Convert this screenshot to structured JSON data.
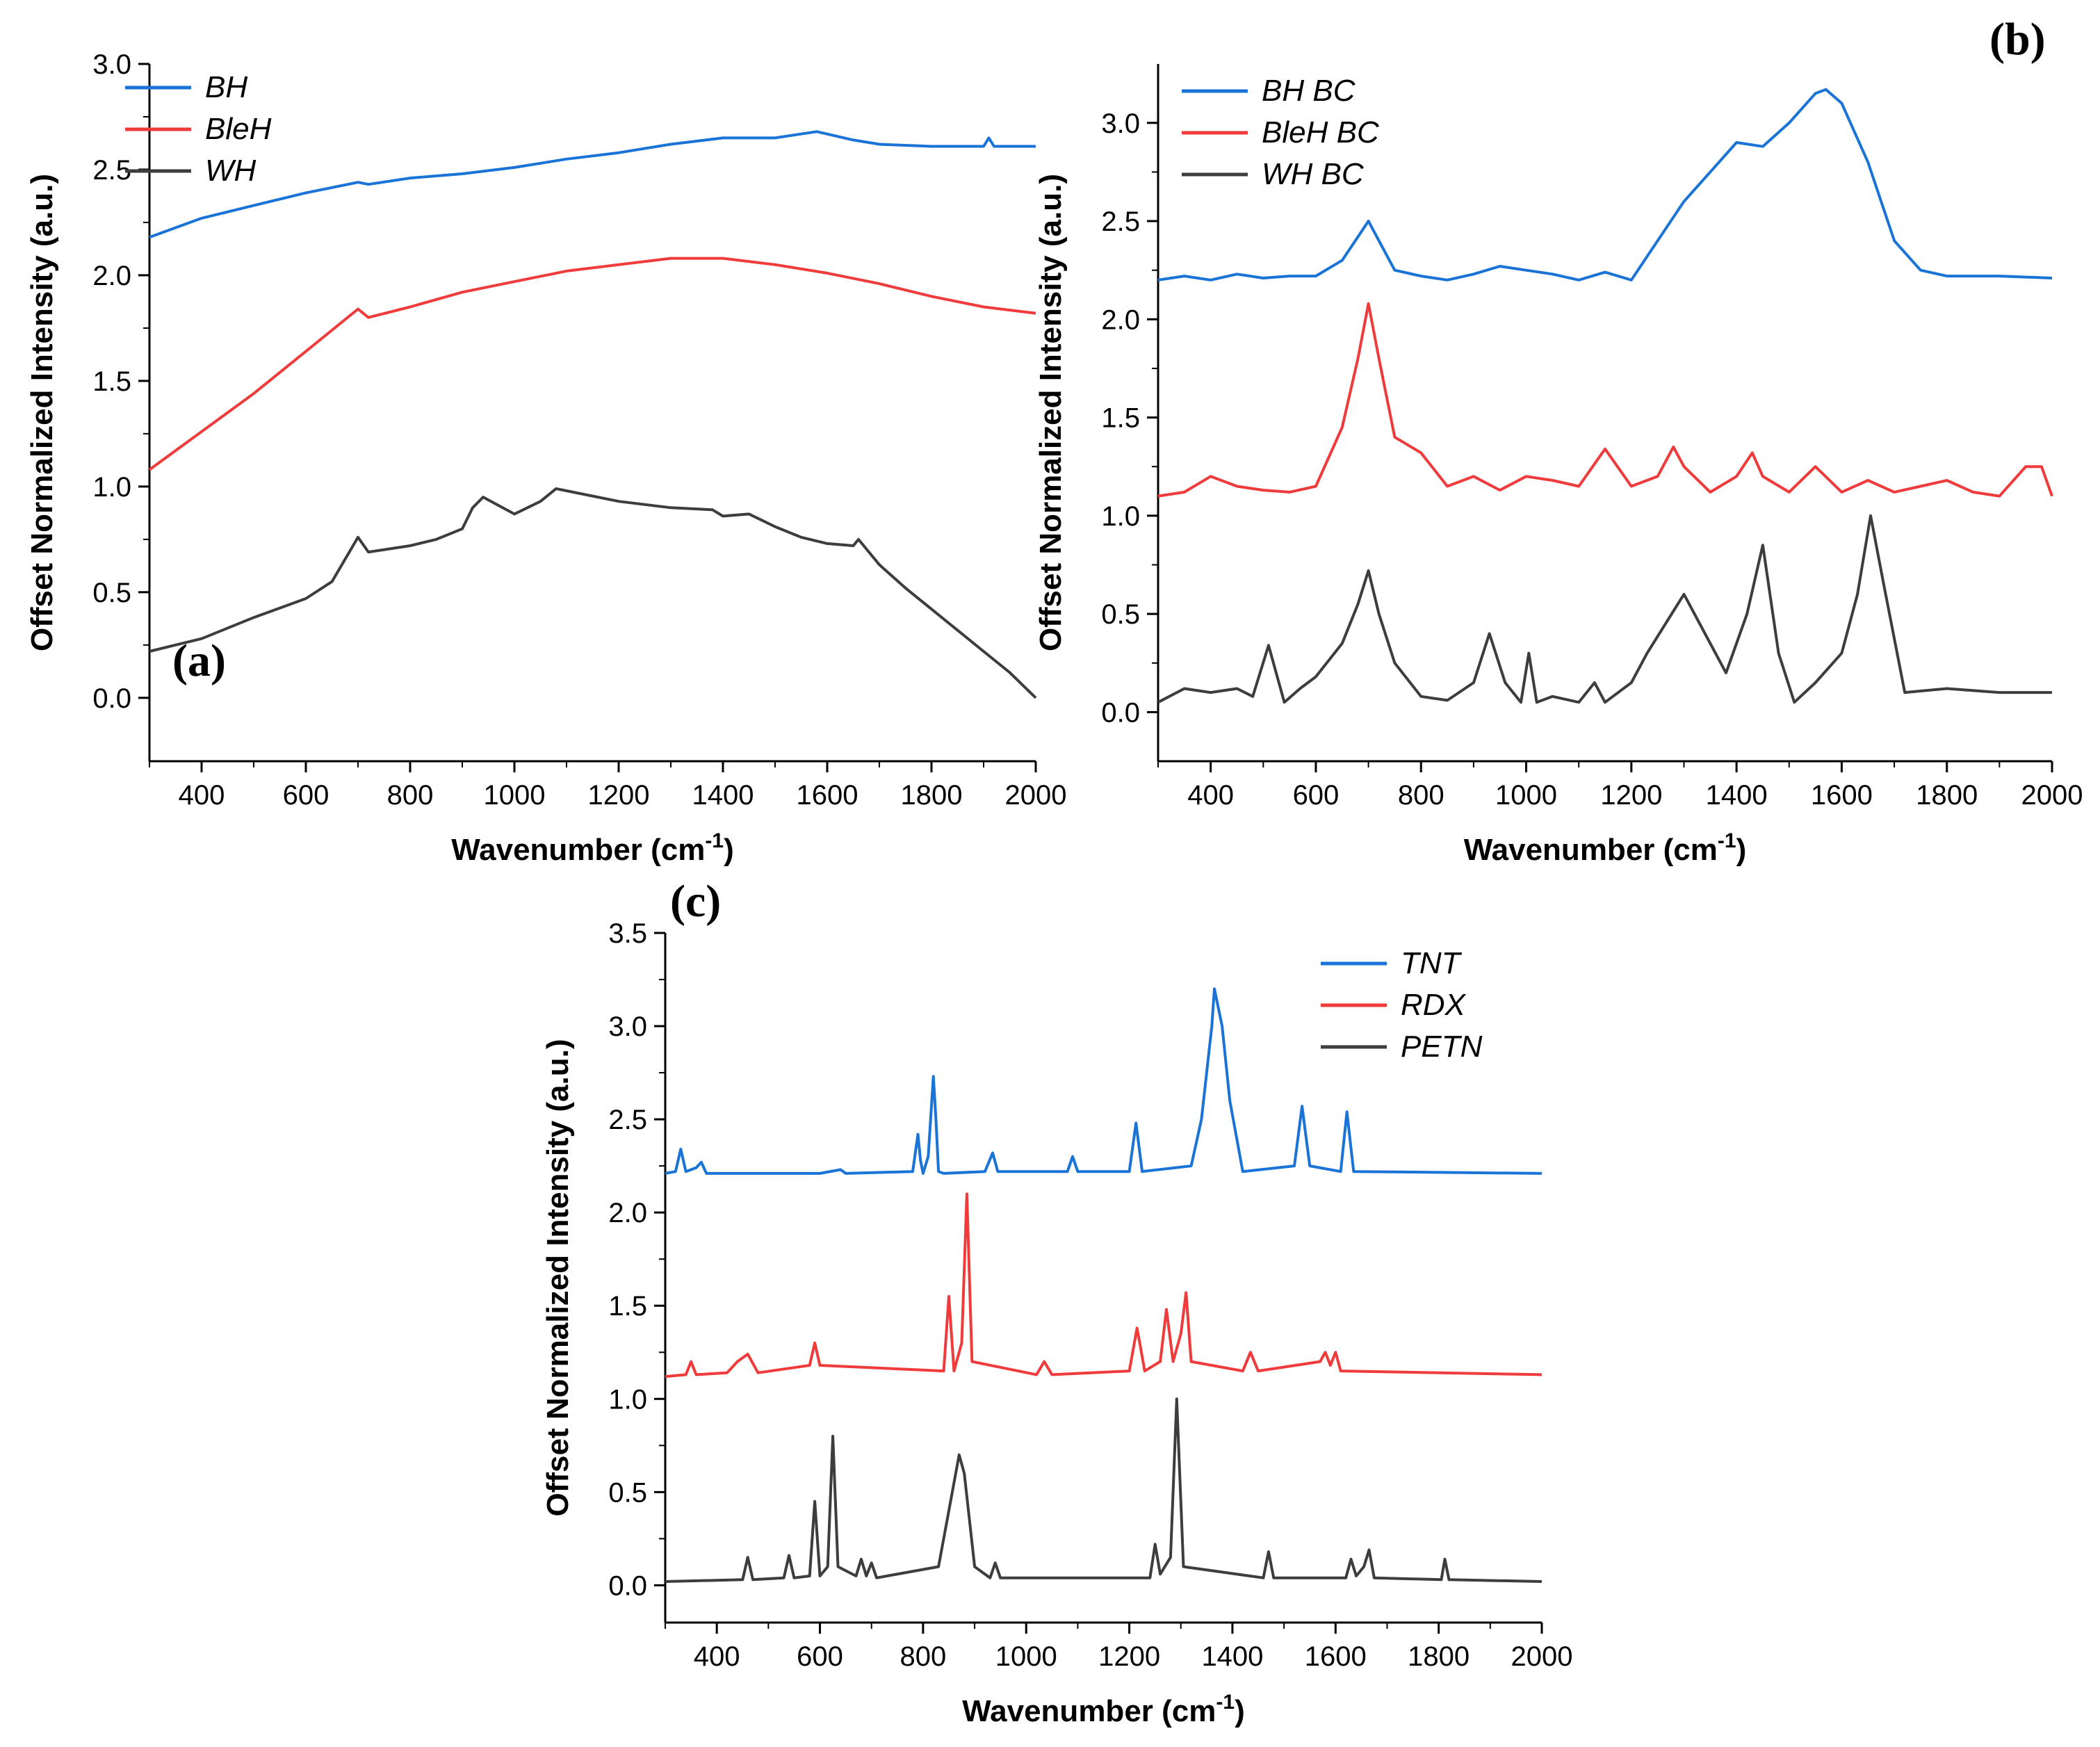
{
  "colors": {
    "blue": "#1a73d6",
    "red": "#ef3b3b",
    "gray": "#3d3d3d"
  },
  "chart_data": [
    {
      "panel_label": "(a)",
      "type": "line",
      "xlabel_main": "Wavenumber (cm",
      "xlabel_sup": "-1",
      "xlabel_tail": ")",
      "ylabel": "Offset Normalized Intensity (a.u.)",
      "xlim": [
        300,
        2000
      ],
      "ylim": [
        -0.3,
        3.0
      ],
      "xticks": [
        400,
        600,
        800,
        1000,
        1200,
        1400,
        1600,
        1800,
        2000
      ],
      "xtick_labels": [
        "400",
        "600",
        "800",
        "1000",
        "1200",
        "1400",
        "1600",
        "1800",
        "2000"
      ],
      "yticks": [
        0.0,
        0.5,
        1.0,
        1.5,
        2.0,
        2.5,
        3.0
      ],
      "ytick_labels": [
        "0.0",
        "0.5",
        "1.0",
        "1.5",
        "2.0",
        "2.5",
        "3.0"
      ],
      "legend_position": "top-left",
      "series": [
        {
          "name": "BH",
          "color": "blue",
          "x": [
            300,
            400,
            500,
            600,
            700,
            720,
            800,
            900,
            1000,
            1100,
            1200,
            1300,
            1400,
            1500,
            1580,
            1650,
            1700,
            1800,
            1900,
            1910,
            1920,
            2000
          ],
          "y": [
            2.18,
            2.27,
            2.33,
            2.39,
            2.44,
            2.43,
            2.46,
            2.48,
            2.51,
            2.55,
            2.58,
            2.62,
            2.65,
            2.65,
            2.68,
            2.64,
            2.62,
            2.61,
            2.61,
            2.65,
            2.61,
            2.61
          ]
        },
        {
          "name": "BleH",
          "color": "red",
          "x": [
            300,
            350,
            400,
            500,
            600,
            650,
            700,
            720,
            800,
            900,
            1000,
            1100,
            1200,
            1300,
            1400,
            1500,
            1600,
            1700,
            1800,
            1900,
            2000
          ],
          "y": [
            1.08,
            1.17,
            1.26,
            1.44,
            1.64,
            1.74,
            1.84,
            1.8,
            1.85,
            1.92,
            1.97,
            2.02,
            2.05,
            2.08,
            2.08,
            2.05,
            2.01,
            1.96,
            1.9,
            1.85,
            1.82
          ]
        },
        {
          "name": "WH",
          "color": "gray",
          "x": [
            300,
            400,
            500,
            600,
            650,
            700,
            720,
            800,
            850,
            900,
            920,
            940,
            1000,
            1050,
            1080,
            1100,
            1200,
            1300,
            1380,
            1400,
            1450,
            1500,
            1550,
            1600,
            1650,
            1660,
            1700,
            1750,
            1800,
            1850,
            1900,
            1950,
            2000
          ],
          "y": [
            0.22,
            0.28,
            0.38,
            0.47,
            0.55,
            0.76,
            0.69,
            0.72,
            0.75,
            0.8,
            0.9,
            0.95,
            0.87,
            0.93,
            0.99,
            0.98,
            0.93,
            0.9,
            0.89,
            0.86,
            0.87,
            0.81,
            0.76,
            0.73,
            0.72,
            0.75,
            0.63,
            0.52,
            0.42,
            0.32,
            0.22,
            0.12,
            0.0
          ]
        }
      ]
    },
    {
      "panel_label": "(b)",
      "type": "line",
      "xlabel_main": "Wavenumber (cm",
      "xlabel_sup": "-1",
      "xlabel_tail": ")",
      "ylabel": "Offset Normalized Intensity (a.u.)",
      "xlim": [
        300,
        2000
      ],
      "ylim": [
        -0.25,
        3.3
      ],
      "xticks": [
        400,
        600,
        800,
        1000,
        1200,
        1400,
        1600,
        1800,
        2000
      ],
      "xtick_labels": [
        "400",
        "600",
        "800",
        "1000",
        "1200",
        "1400",
        "1600",
        "1800",
        "2000"
      ],
      "yticks": [
        0.0,
        0.5,
        1.0,
        1.5,
        2.0,
        2.5,
        3.0
      ],
      "ytick_labels": [
        "0.0",
        "0.5",
        "1.0",
        "1.5",
        "2.0",
        "2.5",
        "3.0"
      ],
      "legend_position": "top-left",
      "series": [
        {
          "name": "BH BC",
          "color": "blue",
          "x": [
            300,
            350,
            400,
            450,
            500,
            550,
            600,
            650,
            680,
            700,
            720,
            750,
            800,
            850,
            900,
            950,
            1000,
            1050,
            1100,
            1150,
            1200,
            1250,
            1300,
            1350,
            1400,
            1450,
            1500,
            1550,
            1570,
            1600,
            1650,
            1700,
            1750,
            1800,
            1900,
            2000
          ],
          "y": [
            2.2,
            2.22,
            2.2,
            2.23,
            2.21,
            2.22,
            2.22,
            2.3,
            2.42,
            2.5,
            2.4,
            2.25,
            2.22,
            2.2,
            2.23,
            2.27,
            2.25,
            2.23,
            2.2,
            2.24,
            2.2,
            2.4,
            2.6,
            2.75,
            2.9,
            2.88,
            3.0,
            3.15,
            3.17,
            3.1,
            2.8,
            2.4,
            2.25,
            2.22,
            2.22,
            2.21
          ]
        },
        {
          "name": "BleH BC",
          "color": "red",
          "x": [
            300,
            350,
            400,
            450,
            500,
            550,
            600,
            650,
            680,
            700,
            720,
            750,
            800,
            850,
            900,
            950,
            1000,
            1050,
            1100,
            1150,
            1200,
            1250,
            1280,
            1300,
            1350,
            1400,
            1430,
            1450,
            1500,
            1550,
            1600,
            1650,
            1700,
            1750,
            1800,
            1850,
            1900,
            1950,
            1980,
            2000
          ],
          "y": [
            1.1,
            1.12,
            1.2,
            1.15,
            1.13,
            1.12,
            1.15,
            1.45,
            1.8,
            2.08,
            1.8,
            1.4,
            1.32,
            1.15,
            1.2,
            1.13,
            1.2,
            1.18,
            1.15,
            1.34,
            1.15,
            1.2,
            1.35,
            1.25,
            1.12,
            1.2,
            1.32,
            1.2,
            1.12,
            1.25,
            1.12,
            1.18,
            1.12,
            1.15,
            1.18,
            1.12,
            1.1,
            1.25,
            1.25,
            1.1
          ]
        },
        {
          "name": "WH BC",
          "color": "gray",
          "x": [
            300,
            350,
            400,
            450,
            480,
            510,
            540,
            570,
            600,
            650,
            680,
            700,
            720,
            750,
            800,
            850,
            900,
            930,
            960,
            990,
            1005,
            1020,
            1050,
            1100,
            1130,
            1150,
            1200,
            1230,
            1300,
            1350,
            1380,
            1420,
            1450,
            1480,
            1510,
            1550,
            1600,
            1630,
            1655,
            1680,
            1720,
            1800,
            1900,
            2000
          ],
          "y": [
            0.05,
            0.12,
            0.1,
            0.12,
            0.08,
            0.34,
            0.05,
            0.12,
            0.18,
            0.35,
            0.55,
            0.72,
            0.5,
            0.25,
            0.08,
            0.06,
            0.15,
            0.4,
            0.15,
            0.05,
            0.3,
            0.05,
            0.08,
            0.05,
            0.15,
            0.05,
            0.15,
            0.3,
            0.6,
            0.35,
            0.2,
            0.5,
            0.85,
            0.3,
            0.05,
            0.15,
            0.3,
            0.6,
            1.0,
            0.65,
            0.1,
            0.12,
            0.1,
            0.1
          ]
        }
      ]
    },
    {
      "panel_label": "(c)",
      "type": "line",
      "xlabel_main": "Wavenumber (cm",
      "xlabel_sup": "-1",
      "xlabel_tail": ")",
      "ylabel": "Offset Normalized Intensity (a.u.)",
      "xlim": [
        300,
        2000
      ],
      "ylim": [
        -0.2,
        3.5
      ],
      "xticks": [
        400,
        600,
        800,
        1000,
        1200,
        1400,
        1600,
        1800,
        2000
      ],
      "xtick_labels": [
        "400",
        "600",
        "800",
        "1000",
        "1200",
        "1400",
        "1600",
        "1800",
        "2000"
      ],
      "yticks": [
        0.0,
        0.5,
        1.0,
        1.5,
        2.0,
        2.5,
        3.0,
        3.5
      ],
      "ytick_labels": [
        "0.0",
        "0.5",
        "1.0",
        "1.5",
        "2.0",
        "2.5",
        "3.0",
        "3.5"
      ],
      "legend_position": "top-right",
      "series": [
        {
          "name": "TNT",
          "color": "blue",
          "x": [
            300,
            320,
            330,
            340,
            360,
            370,
            380,
            600,
            640,
            650,
            780,
            790,
            795,
            800,
            810,
            820,
            825,
            830,
            840,
            920,
            935,
            945,
            1080,
            1090,
            1100,
            1200,
            1213,
            1225,
            1320,
            1340,
            1360,
            1365,
            1380,
            1395,
            1420,
            1520,
            1535,
            1550,
            1610,
            1622,
            1635,
            2000
          ],
          "y": [
            2.21,
            2.22,
            2.34,
            2.22,
            2.24,
            2.27,
            2.21,
            2.21,
            2.23,
            2.21,
            2.22,
            2.42,
            2.28,
            2.21,
            2.3,
            2.73,
            2.5,
            2.22,
            2.21,
            2.22,
            2.32,
            2.22,
            2.22,
            2.3,
            2.22,
            2.22,
            2.48,
            2.22,
            2.25,
            2.5,
            3.0,
            3.2,
            3.0,
            2.6,
            2.22,
            2.25,
            2.57,
            2.25,
            2.22,
            2.54,
            2.22,
            2.21
          ]
        },
        {
          "name": "RDX",
          "color": "red",
          "x": [
            300,
            340,
            350,
            360,
            420,
            440,
            460,
            480,
            580,
            590,
            600,
            840,
            850,
            860,
            875,
            885,
            895,
            1020,
            1035,
            1050,
            1200,
            1215,
            1230,
            1260,
            1272,
            1285,
            1300,
            1310,
            1320,
            1420,
            1435,
            1450,
            1570,
            1580,
            1590,
            1600,
            1610,
            2000
          ],
          "y": [
            1.12,
            1.13,
            1.2,
            1.13,
            1.14,
            1.2,
            1.24,
            1.14,
            1.18,
            1.3,
            1.18,
            1.15,
            1.55,
            1.15,
            1.3,
            2.1,
            1.2,
            1.13,
            1.2,
            1.13,
            1.15,
            1.38,
            1.15,
            1.2,
            1.48,
            1.2,
            1.35,
            1.57,
            1.2,
            1.15,
            1.25,
            1.15,
            1.2,
            1.25,
            1.18,
            1.25,
            1.15,
            1.13
          ]
        },
        {
          "name": "PETN",
          "color": "gray",
          "x": [
            300,
            450,
            460,
            470,
            530,
            540,
            550,
            580,
            590,
            600,
            615,
            625,
            635,
            670,
            680,
            690,
            700,
            710,
            830,
            850,
            870,
            880,
            900,
            930,
            940,
            950,
            1240,
            1250,
            1260,
            1280,
            1292,
            1305,
            1460,
            1470,
            1480,
            1620,
            1630,
            1640,
            1655,
            1665,
            1675,
            1805,
            1812,
            1820,
            2000
          ],
          "y": [
            0.02,
            0.03,
            0.15,
            0.03,
            0.04,
            0.16,
            0.04,
            0.05,
            0.45,
            0.05,
            0.1,
            0.8,
            0.1,
            0.05,
            0.14,
            0.05,
            0.12,
            0.04,
            0.1,
            0.4,
            0.7,
            0.6,
            0.1,
            0.04,
            0.12,
            0.04,
            0.04,
            0.22,
            0.06,
            0.15,
            1.0,
            0.1,
            0.04,
            0.18,
            0.04,
            0.04,
            0.14,
            0.05,
            0.1,
            0.19,
            0.04,
            0.03,
            0.14,
            0.03,
            0.02
          ]
        }
      ]
    }
  ]
}
